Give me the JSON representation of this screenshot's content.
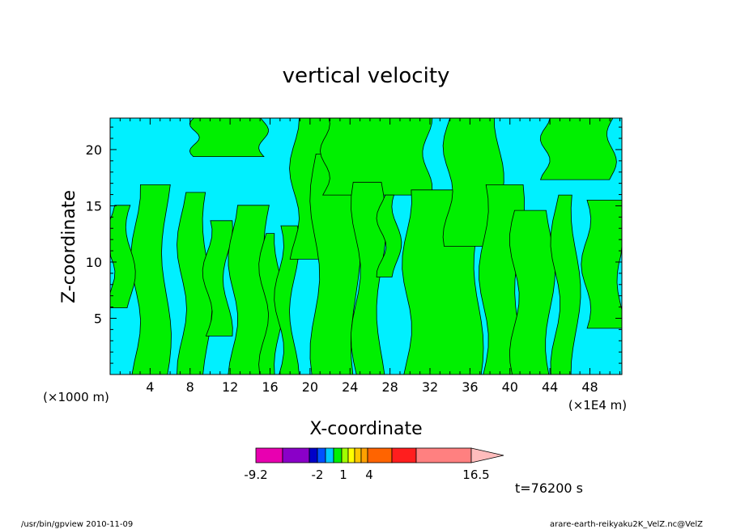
{
  "chart_data": {
    "type": "heatmap",
    "title": "vertical velocity",
    "xlabel": "X-coordinate",
    "ylabel": "Z-coordinate",
    "x_unit_left": "(×1000 m)",
    "x_unit_right": "(×1E4 m)",
    "xlim": [
      0,
      51.2
    ],
    "ylim": [
      0,
      22.8
    ],
    "x_ticks": [
      "4",
      "8",
      "12",
      "16",
      "20",
      "24",
      "28",
      "32",
      "36",
      "40",
      "44",
      "48"
    ],
    "y_ticks": [
      "5",
      "10",
      "15",
      "20"
    ],
    "fields": [
      {
        "sign": "negative",
        "color": "#00f0ff"
      },
      {
        "sign": "positive",
        "color": "#00f000"
      }
    ],
    "colorbar": {
      "labels": [
        "-9.2",
        "-2",
        "1",
        "4",
        "16.5"
      ],
      "colors": [
        "#e800b0",
        "#8a00c8",
        "#0000c8",
        "#0050ff",
        "#00c8ff",
        "#00f000",
        "#a0ff00",
        "#ffff00",
        "#ffc800",
        "#ffa000",
        "#ff6400",
        "#ff1e1e",
        "#ff8080",
        "#ffbcbc"
      ]
    },
    "time_label": "t=76200 s",
    "footer_left": "/usr/bin/gpview  2010-11-09",
    "footer_right": "arare-earth-reikyaku2K_VelZ.nc@VelZ"
  }
}
